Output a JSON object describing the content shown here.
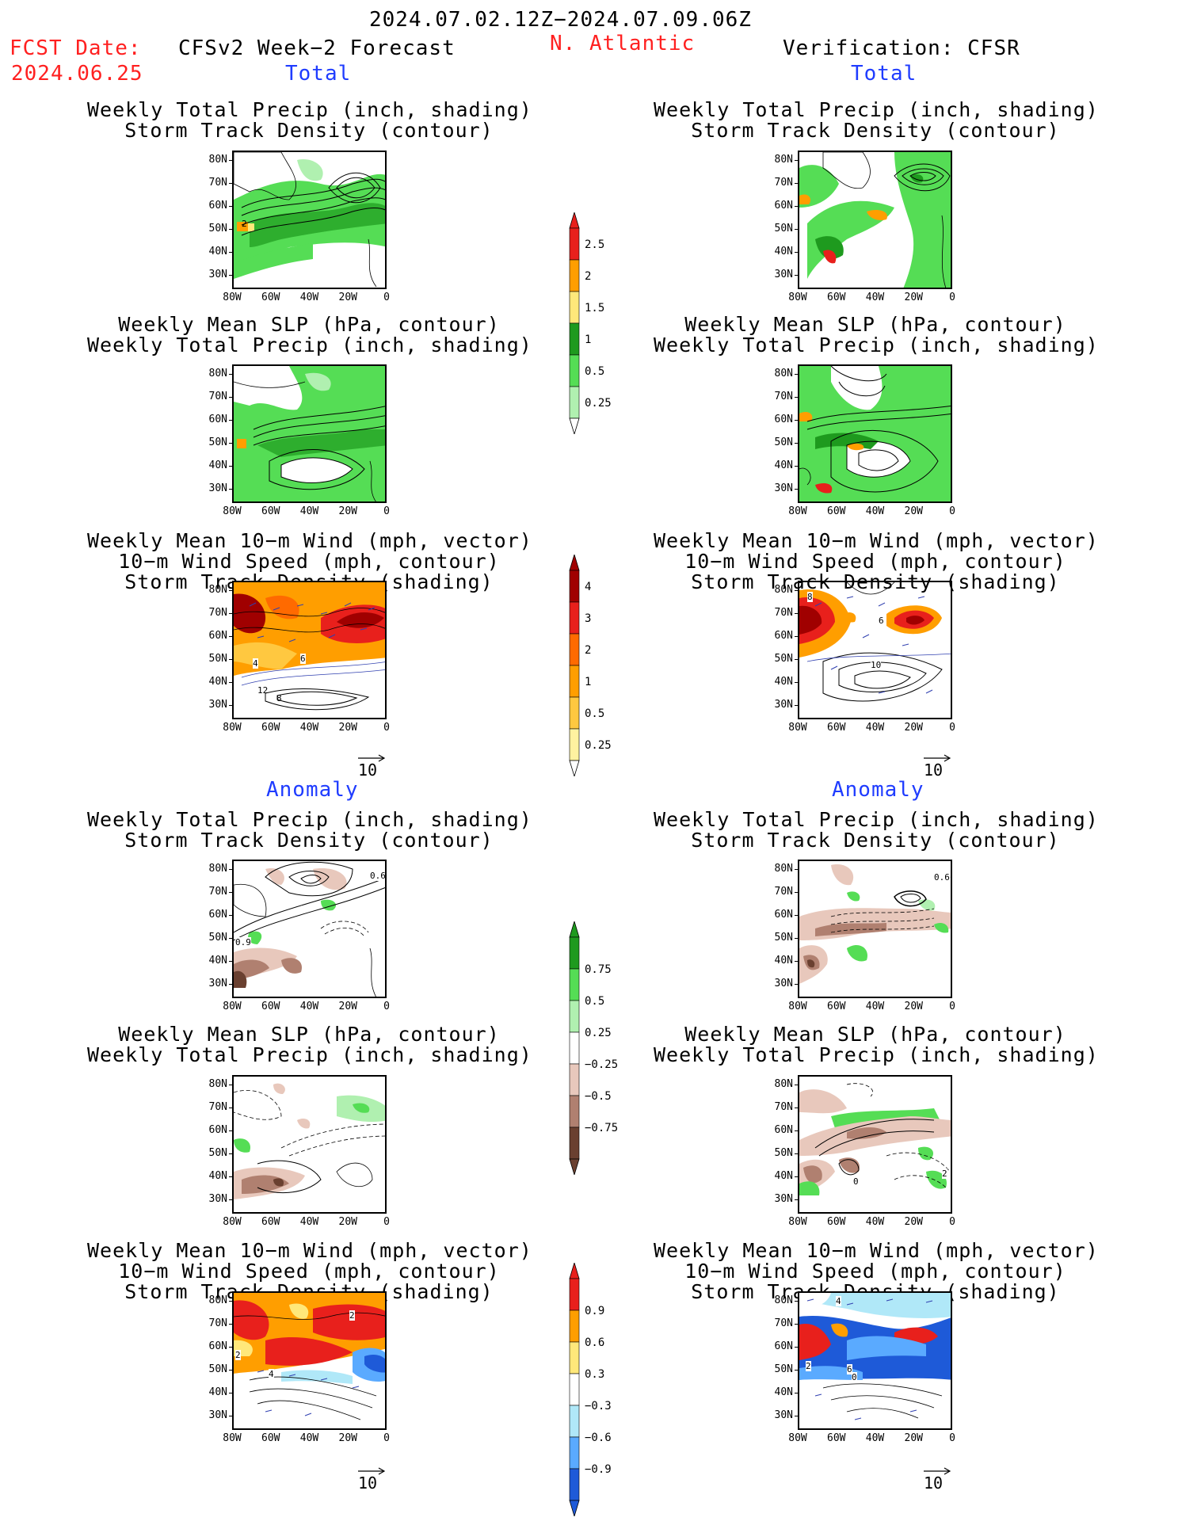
{
  "header": {
    "period": "2024.07.02.12Z−2024.07.09.06Z",
    "fcst_label": "FCST Date:",
    "fcst_date": "2024.06.25",
    "region": "N. Atlantic",
    "left_title": "CFSv2 Week−2 Forecast",
    "right_title": "Verification: CFSR",
    "total_label": "Total",
    "anomaly_label": "Anomaly"
  },
  "panels": {
    "p1_line1": "Weekly Total Precip (inch, shading)",
    "p1_line2": "Storm Track Density (contour)",
    "p2_line1": "Weekly Mean SLP (hPa, contour)",
    "p2_line2": "Weekly Total Precip (inch, shading)",
    "p3_line1": "Weekly Mean 10−m Wind (mph, vector)",
    "p3_line2": "10−m Wind Speed (mph, contour)",
    "p3_line3": "Storm Track Density (shading)"
  },
  "axes": {
    "lat_ticks": [
      "80N",
      "70N",
      "60N",
      "50N",
      "40N",
      "30N"
    ],
    "lon_ticks": [
      "80W",
      "60W",
      "40W",
      "20W",
      "0"
    ]
  },
  "vector_ref": "10",
  "colorbars": {
    "precip_total": {
      "labels": [
        "2.5",
        "2",
        "1.5",
        "1",
        "0.5",
        "0.25"
      ],
      "colors": [
        "#e8201c",
        "#ff9e00",
        "#ffe87a",
        "#1e9a1e",
        "#55dd55",
        "#b0f0b0"
      ]
    },
    "storm_total": {
      "labels": [
        "4",
        "3",
        "2",
        "1",
        "0.5",
        "0.25"
      ],
      "colors": [
        "#a00000",
        "#e8201c",
        "#ff6a00",
        "#ff9e00",
        "#ffc840",
        "#fff2a0"
      ]
    },
    "precip_anom": {
      "labels": [
        "0.75",
        "0.5",
        "0.25",
        "−0.25",
        "−0.5",
        "−0.75"
      ],
      "colors": [
        "#1e9a1e",
        "#55dd55",
        "#b0f0b0",
        "#ffffff",
        "#e8c8bc",
        "#b08070",
        "#6a4030"
      ]
    },
    "storm_anom": {
      "labels": [
        "0.9",
        "0.6",
        "0.3",
        "−0.3",
        "−0.6",
        "−0.9"
      ],
      "colors": [
        "#e8201c",
        "#ff9e00",
        "#ffe87a",
        "#ffffff",
        "#b0e8f8",
        "#5aaaff",
        "#1e5ad8"
      ]
    }
  },
  "map_labels": {
    "f_precip_2": "2",
    "f_storm_6": "6",
    "f_storm_4": "4",
    "f_storm_12": "12",
    "f_storm_8": "8",
    "v_storm_8": "8",
    "v_storm_6": "6",
    "v_storm_10": "10",
    "f_anom_06": "0.6",
    "f_anom_09": "0.9",
    "v_anom_06": "0.6",
    "v_anom_0": "0",
    "v_anom_2": "2",
    "fa_storm_2a": "2",
    "fa_storm_2b": "2",
    "fa_storm_4": "4",
    "va_storm_6": "6",
    "va_storm_0": "0",
    "va_storm_2": "2",
    "va_storm_4": "4"
  }
}
